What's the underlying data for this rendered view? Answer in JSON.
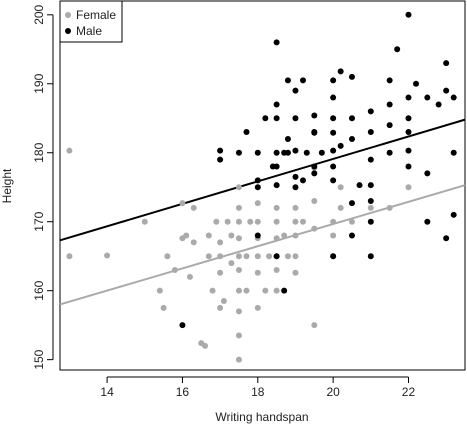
{
  "chart_data": {
    "type": "scatter",
    "title": "",
    "xlabel": "Writing handspan",
    "ylabel": "Height",
    "xlim": [
      12.75,
      23.5
    ],
    "ylim": [
      148.5,
      202
    ],
    "x_ticks": [
      14,
      16,
      18,
      20,
      22
    ],
    "y_ticks": [
      150,
      160,
      170,
      180,
      190,
      200
    ],
    "grid": false,
    "legend_position": "top-left",
    "series": [
      {
        "name": "Female",
        "color": "#aaaaaa",
        "points": [
          [
            13.0,
            180.3
          ],
          [
            13.0,
            165.0
          ],
          [
            14.0,
            165.1
          ],
          [
            15.0,
            170.0
          ],
          [
            15.4,
            160.0
          ],
          [
            15.5,
            157.5
          ],
          [
            15.6,
            165.0
          ],
          [
            15.8,
            163.0
          ],
          [
            16.0,
            167.6
          ],
          [
            16.0,
            172.7
          ],
          [
            16.1,
            168.0
          ],
          [
            16.2,
            162.0
          ],
          [
            16.3,
            167.0
          ],
          [
            16.3,
            172.0
          ],
          [
            16.5,
            152.4
          ],
          [
            16.6,
            152.0
          ],
          [
            16.7,
            165.0
          ],
          [
            16.7,
            168.0
          ],
          [
            16.8,
            160.0
          ],
          [
            16.9,
            170.0
          ],
          [
            17.0,
            157.5
          ],
          [
            17.0,
            162.6
          ],
          [
            17.0,
            165.0
          ],
          [
            17.0,
            167.0
          ],
          [
            17.1,
            158.5
          ],
          [
            17.2,
            170.0
          ],
          [
            17.3,
            164.0
          ],
          [
            17.3,
            168.0
          ],
          [
            17.5,
            150.0
          ],
          [
            17.5,
            153.5
          ],
          [
            17.5,
            157.0
          ],
          [
            17.5,
            160.0
          ],
          [
            17.5,
            163.0
          ],
          [
            17.5,
            165.0
          ],
          [
            17.5,
            167.6
          ],
          [
            17.5,
            170.0
          ],
          [
            17.5,
            172.0
          ],
          [
            17.5,
            175.0
          ],
          [
            17.7,
            160.0
          ],
          [
            17.7,
            165.0
          ],
          [
            17.8,
            170.0
          ],
          [
            18.0,
            157.5
          ],
          [
            18.0,
            162.6
          ],
          [
            18.0,
            165.0
          ],
          [
            18.0,
            167.6
          ],
          [
            18.0,
            170.0
          ],
          [
            18.0,
            172.7
          ],
          [
            18.2,
            160.0
          ],
          [
            18.3,
            165.0
          ],
          [
            18.5,
            160.0
          ],
          [
            18.5,
            163.0
          ],
          [
            18.5,
            165.0
          ],
          [
            18.5,
            167.6
          ],
          [
            18.5,
            170.0
          ],
          [
            18.5,
            172.0
          ],
          [
            18.7,
            168.0
          ],
          [
            18.8,
            165.0
          ],
          [
            19.0,
            162.6
          ],
          [
            19.0,
            165.0
          ],
          [
            19.0,
            168.0
          ],
          [
            19.0,
            170.0
          ],
          [
            19.0,
            172.0
          ],
          [
            19.2,
            170.0
          ],
          [
            19.5,
            155.0
          ],
          [
            19.5,
            169.0
          ],
          [
            19.5,
            173.0
          ],
          [
            19.5,
            177.8
          ],
          [
            20.0,
            165.0
          ],
          [
            20.0,
            168.0
          ],
          [
            20.0,
            170.0
          ],
          [
            20.2,
            172.0
          ],
          [
            20.2,
            175.0
          ],
          [
            20.5,
            170.0
          ],
          [
            21.0,
            172.0
          ],
          [
            21.5,
            172.0
          ],
          [
            22.0,
            175.0
          ]
        ]
      },
      {
        "name": "Male",
        "color": "#000000",
        "points": [
          [
            16.0,
            155.0
          ],
          [
            17.0,
            180.3
          ],
          [
            17.0,
            179.0
          ],
          [
            17.5,
            180.0
          ],
          [
            17.7,
            183.0
          ],
          [
            18.0,
            175.0
          ],
          [
            18.0,
            180.0
          ],
          [
            18.0,
            176.0
          ],
          [
            18.0,
            168.0
          ],
          [
            18.2,
            185.0
          ],
          [
            18.4,
            178.0
          ],
          [
            18.5,
            196.0
          ],
          [
            18.5,
            187.0
          ],
          [
            18.5,
            185.0
          ],
          [
            18.5,
            180.0
          ],
          [
            18.5,
            178.0
          ],
          [
            18.5,
            175.3
          ],
          [
            18.5,
            165.0
          ],
          [
            18.7,
            160.0
          ],
          [
            18.7,
            180.0
          ],
          [
            18.8,
            190.5
          ],
          [
            18.8,
            182.0
          ],
          [
            18.8,
            180.0
          ],
          [
            19.0,
            189.0
          ],
          [
            19.0,
            185.0
          ],
          [
            19.0,
            180.3
          ],
          [
            19.0,
            176.5
          ],
          [
            19.0,
            175.0
          ],
          [
            19.2,
            190.5
          ],
          [
            19.2,
            176.0
          ],
          [
            19.3,
            180.0
          ],
          [
            19.5,
            185.4
          ],
          [
            19.5,
            182.9
          ],
          [
            19.5,
            178.0
          ],
          [
            19.5,
            177.0
          ],
          [
            19.5,
            183.0
          ],
          [
            19.7,
            180.0
          ],
          [
            20.0,
            190.5
          ],
          [
            20.0,
            188.0
          ],
          [
            20.0,
            185.0
          ],
          [
            20.0,
            182.9
          ],
          [
            20.0,
            180.3
          ],
          [
            20.0,
            178.0
          ],
          [
            20.0,
            176.0
          ],
          [
            20.0,
            165.0
          ],
          [
            20.2,
            191.8
          ],
          [
            20.2,
            181.0
          ],
          [
            20.5,
            191.0
          ],
          [
            20.5,
            185.0
          ],
          [
            20.5,
            182.0
          ],
          [
            20.5,
            172.7
          ],
          [
            20.5,
            168.0
          ],
          [
            20.7,
            175.3
          ],
          [
            21.0,
            186.0
          ],
          [
            21.0,
            183.0
          ],
          [
            21.0,
            179.0
          ],
          [
            21.0,
            175.3
          ],
          [
            21.0,
            173.0
          ],
          [
            21.0,
            170.0
          ],
          [
            21.0,
            165.0
          ],
          [
            21.5,
            190.5
          ],
          [
            21.5,
            187.0
          ],
          [
            21.5,
            184.0
          ],
          [
            21.5,
            180.0
          ],
          [
            21.7,
            195.0
          ],
          [
            22.0,
            200.0
          ],
          [
            22.0,
            188.0
          ],
          [
            22.0,
            185.0
          ],
          [
            22.0,
            183.0
          ],
          [
            22.0,
            180.3
          ],
          [
            22.0,
            178.0
          ],
          [
            22.2,
            190.0
          ],
          [
            22.5,
            188.0
          ],
          [
            22.5,
            177.0
          ],
          [
            22.5,
            170.0
          ],
          [
            22.8,
            187.0
          ],
          [
            23.0,
            193.0
          ],
          [
            23.0,
            189.0
          ],
          [
            23.0,
            167.6
          ],
          [
            23.2,
            180.0
          ],
          [
            23.2,
            171.0
          ],
          [
            23.2,
            188.0
          ]
        ]
      }
    ],
    "lines": [
      {
        "name": "Female",
        "color": "#aaaaaa",
        "x": [
          12.75,
          23.5
        ],
        "y": [
          158.0,
          175.3
        ]
      },
      {
        "name": "Male",
        "color": "#000000",
        "x": [
          12.75,
          23.5
        ],
        "y": [
          167.3,
          184.8
        ]
      }
    ]
  }
}
